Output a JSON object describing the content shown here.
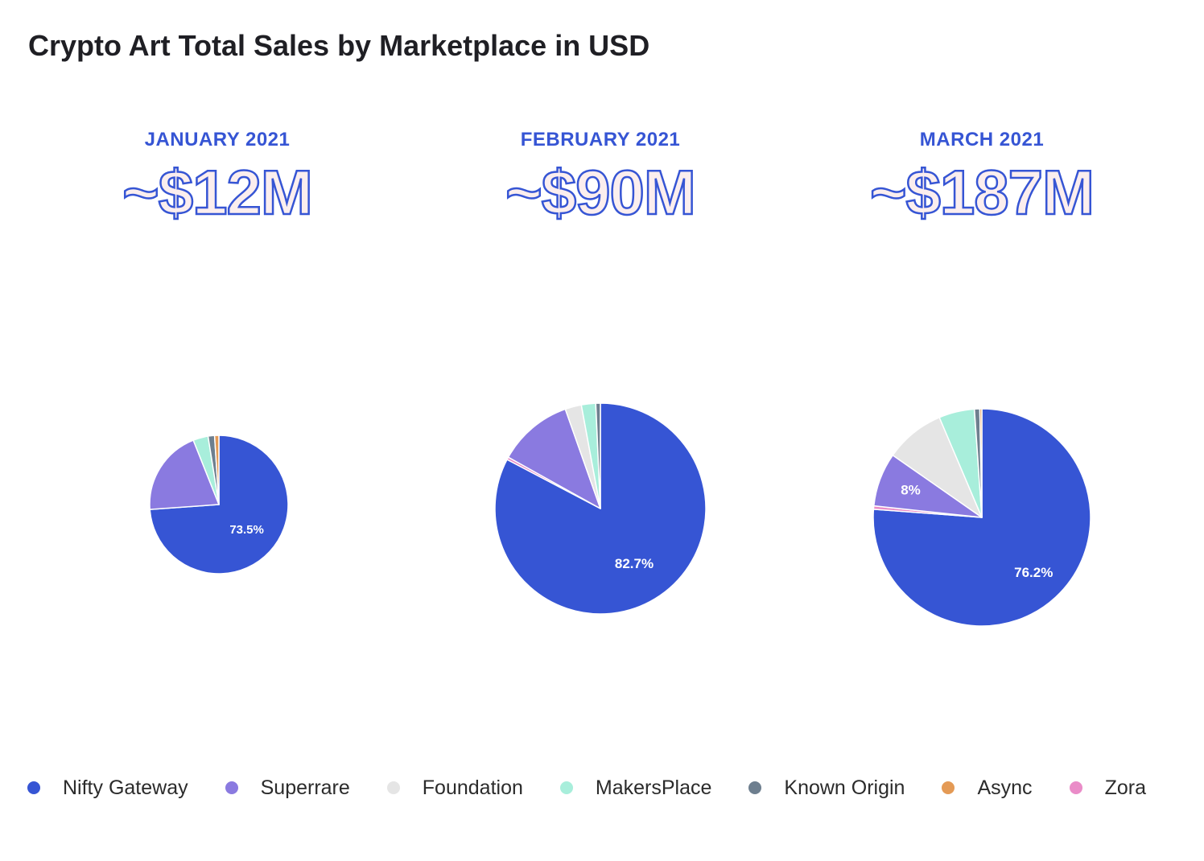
{
  "title": "Crypto Art Total Sales by Marketplace in USD",
  "colors": {
    "Nifty Gateway": "#3655d4",
    "Superrare": "#8a7ae0",
    "Foundation": "#e5e5e5",
    "MakersPlace": "#a8eedb",
    "Known Origin": "#6e7f8f",
    "Async": "#e49a55",
    "Zora": "#ea8cc8"
  },
  "chart_data": [
    {
      "type": "pie",
      "title": "JANUARY 2021",
      "subtitle": "~$12M",
      "labels": [
        "Nifty Gateway",
        "Superrare",
        "MakersPlace",
        "Known Origin",
        "Async"
      ],
      "values": [
        73.5,
        20.0,
        3.5,
        1.5,
        1.0
      ],
      "data_labels": [
        "73.5%",
        "",
        "",
        "",
        ""
      ]
    },
    {
      "type": "pie",
      "title": "FEBRUARY 2021",
      "subtitle": "~$90M",
      "labels": [
        "Nifty Gateway",
        "Zora",
        "Superrare",
        "Foundation",
        "MakersPlace",
        "Known Origin"
      ],
      "values": [
        82.7,
        0.4,
        11.5,
        2.5,
        2.2,
        0.7
      ],
      "data_labels": [
        "82.7%",
        "",
        "",
        "",
        "",
        ""
      ]
    },
    {
      "type": "pie",
      "title": "MARCH 2021",
      "subtitle": "~$187M",
      "labels": [
        "Nifty Gateway",
        "Zora",
        "Superrare",
        "Foundation",
        "MakersPlace",
        "Known Origin",
        "Async"
      ],
      "values": [
        76.2,
        0.5,
        8.0,
        8.9,
        5.3,
        0.8,
        0.3
      ],
      "data_labels": [
        "76.2%",
        "",
        "8%",
        "",
        "",
        "",
        ""
      ]
    }
  ],
  "legend": [
    {
      "label": "Nifty Gateway",
      "color": "#3655d4"
    },
    {
      "label": "Superrare",
      "color": "#8a7ae0"
    },
    {
      "label": "Foundation",
      "color": "#e5e5e5"
    },
    {
      "label": "MakersPlace",
      "color": "#a8eedb"
    },
    {
      "label": "Known Origin",
      "color": "#6e7f8f"
    },
    {
      "label": "Async",
      "color": "#e49a55"
    },
    {
      "label": "Zora",
      "color": "#ea8cc8"
    }
  ]
}
